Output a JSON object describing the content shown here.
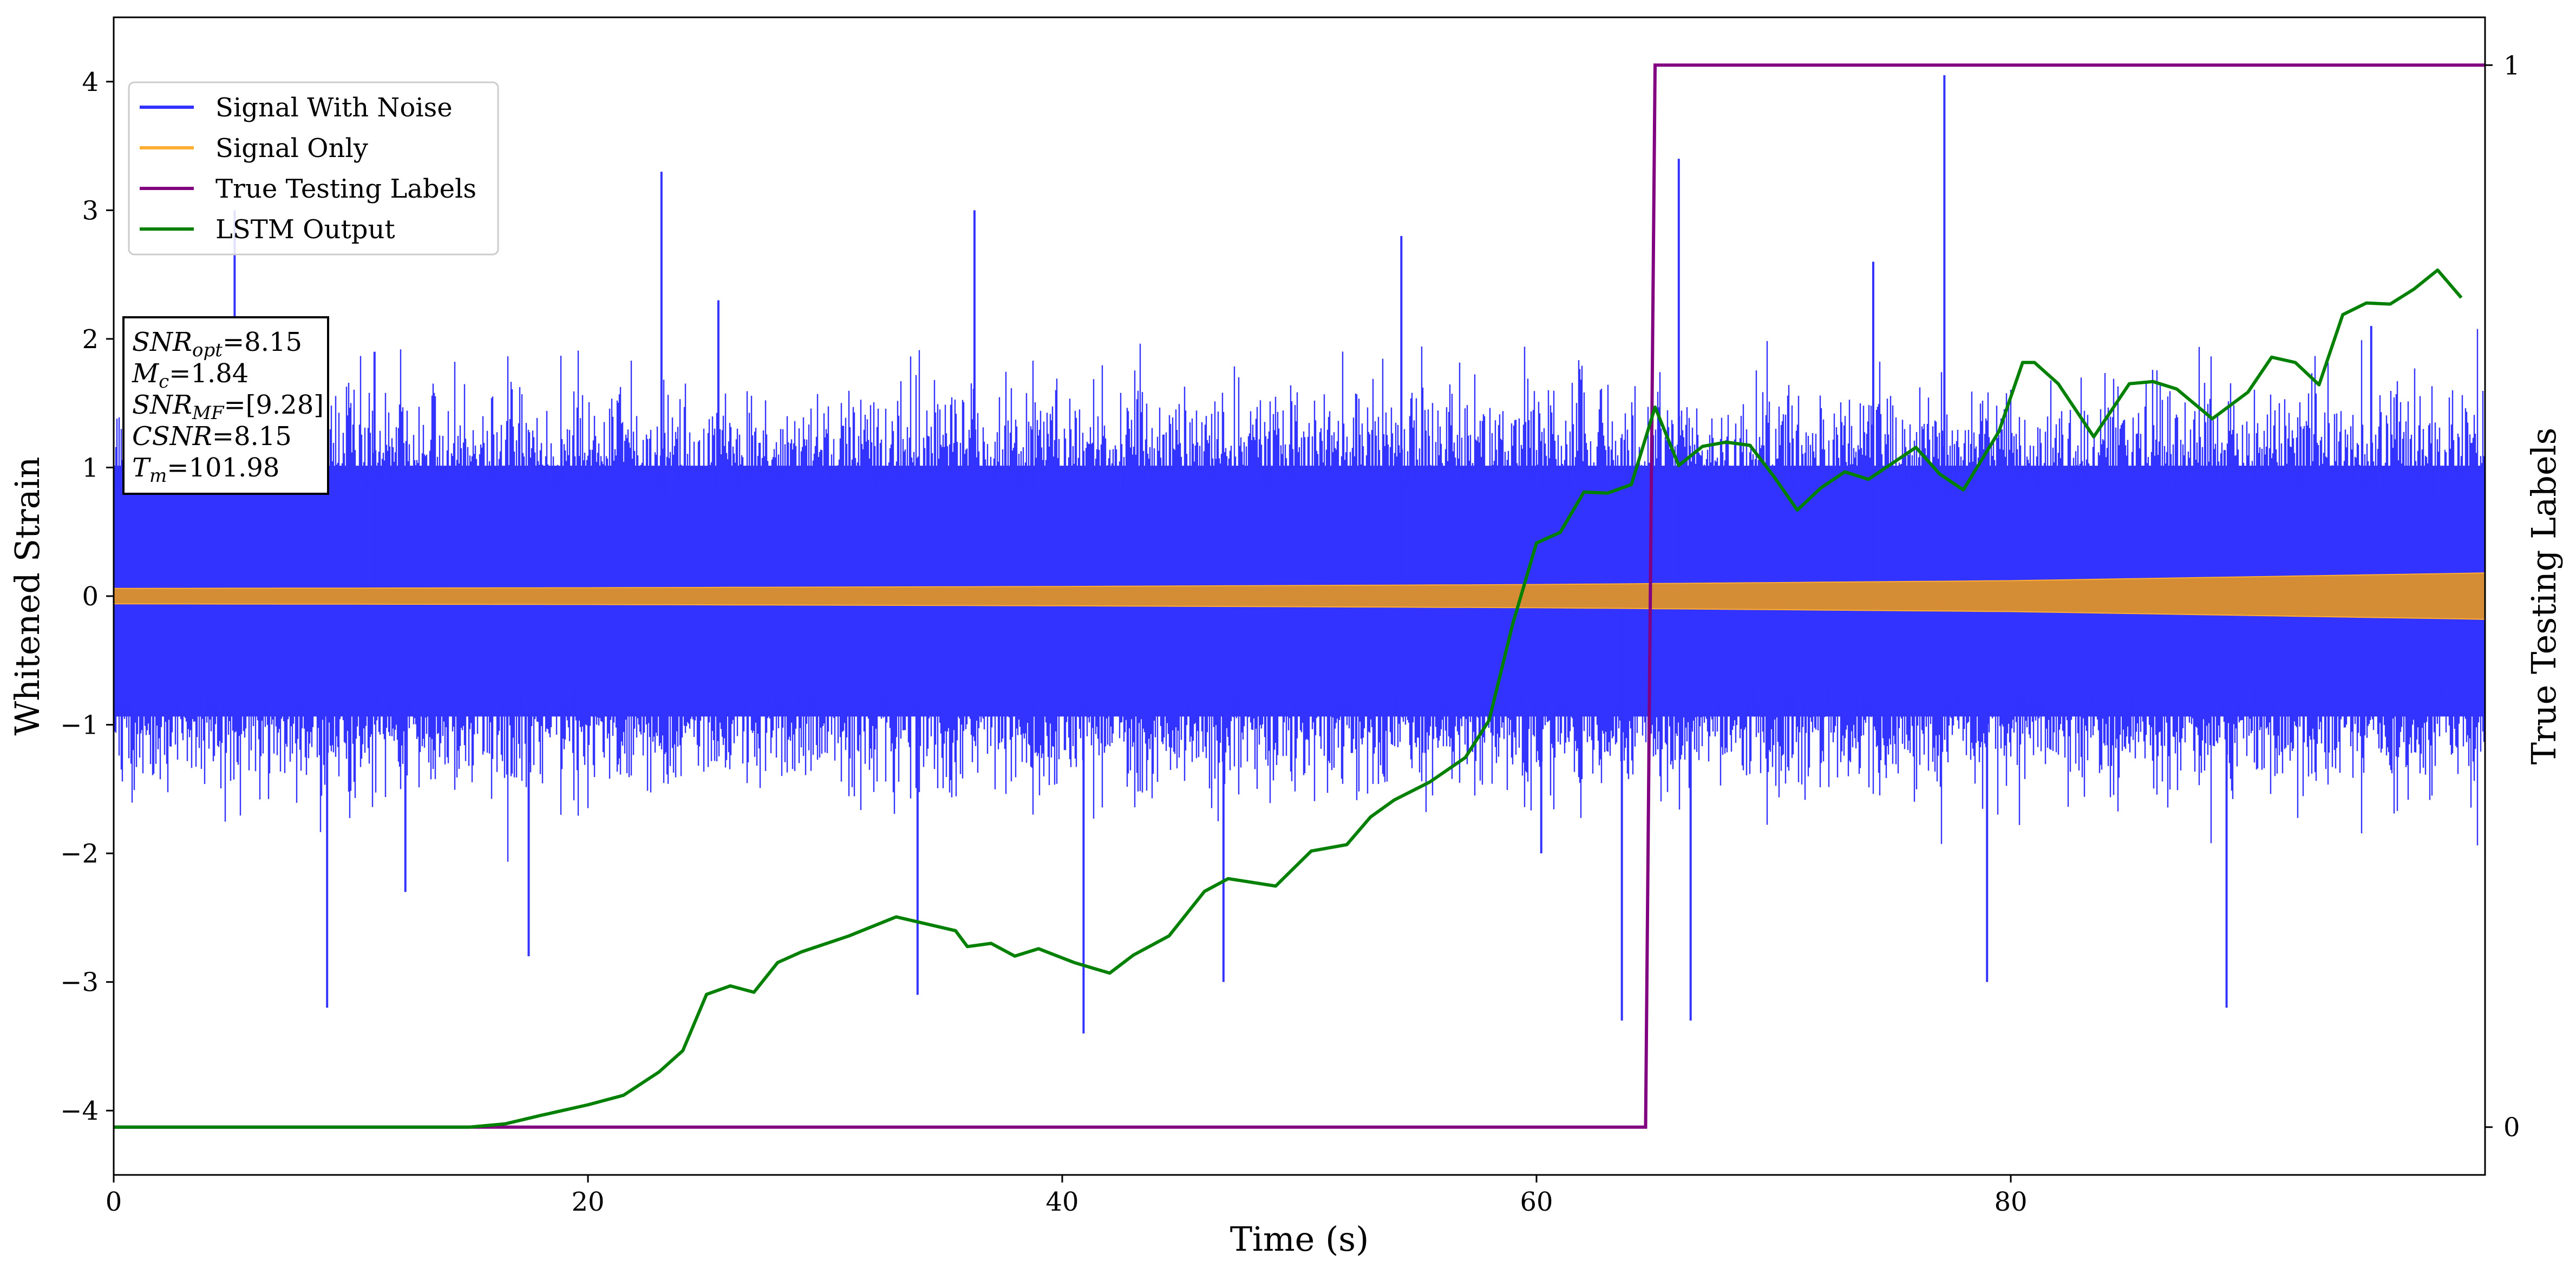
{
  "chart_data": {
    "type": "line",
    "xlabel": "Time (s)",
    "ylabel": "Whitened Strain",
    "y2label": "True Testing Labels",
    "xlim": [
      0,
      100
    ],
    "ylim": [
      -4.5,
      4.5
    ],
    "y2lim": [
      -0.045,
      1.045
    ],
    "xticks": [
      0,
      20,
      40,
      60,
      80
    ],
    "yticks": [
      -4,
      -3,
      -2,
      -1,
      0,
      1,
      2,
      3,
      4
    ],
    "y2ticks": [
      0,
      1
    ],
    "grid": false,
    "legend_position": "upper-left",
    "colors": {
      "signal_with_noise": "#3333ff",
      "signal_only": "#ffad33",
      "true_labels": "#800080",
      "lstm_output": "#008000"
    },
    "series": [
      {
        "name": "Signal With Noise",
        "axis": "left",
        "style": "noise band",
        "typical_range": [
          -1.2,
          1.3
        ],
        "max": 4.05,
        "min": -3.4,
        "spikes": [
          {
            "x": 5.1,
            "y": 3.0
          },
          {
            "x": 9.0,
            "y": -3.2
          },
          {
            "x": 11.0,
            "y": 1.9
          },
          {
            "x": 12.3,
            "y": -2.3
          },
          {
            "x": 17.5,
            "y": -2.8
          },
          {
            "x": 23.1,
            "y": 3.3
          },
          {
            "x": 25.5,
            "y": 2.3
          },
          {
            "x": 33.9,
            "y": -3.1
          },
          {
            "x": 36.3,
            "y": 3.0
          },
          {
            "x": 40.9,
            "y": -3.4
          },
          {
            "x": 46.8,
            "y": -3.0
          },
          {
            "x": 54.3,
            "y": 2.8
          },
          {
            "x": 60.2,
            "y": -2.0
          },
          {
            "x": 63.6,
            "y": -3.3
          },
          {
            "x": 66.5,
            "y": -3.3
          },
          {
            "x": 66.0,
            "y": 3.4
          },
          {
            "x": 74.2,
            "y": 2.6
          },
          {
            "x": 77.2,
            "y": 4.05
          },
          {
            "x": 79.0,
            "y": -3.0
          },
          {
            "x": 89.1,
            "y": -3.2
          },
          {
            "x": 95.2,
            "y": 2.1
          }
        ]
      },
      {
        "name": "Signal Only",
        "axis": "left",
        "style": "chirp envelope",
        "x": [
          0,
          20,
          40,
          60,
          80,
          100
        ],
        "amplitude": [
          0.06,
          0.065,
          0.075,
          0.09,
          0.12,
          0.18
        ]
      },
      {
        "name": "True Testing Labels",
        "axis": "right",
        "x": [
          0,
          64.6,
          65.0,
          100
        ],
        "y": [
          0,
          0,
          1,
          1
        ]
      },
      {
        "name": "LSTM Output",
        "axis": "right",
        "x": [
          0,
          15,
          16.5,
          18,
          20,
          21.5,
          23,
          24,
          25,
          26,
          27,
          28,
          29,
          31,
          33,
          35.5,
          36,
          37,
          38,
          39,
          40.5,
          42,
          43,
          44.5,
          46,
          47,
          49,
          50.5,
          52,
          53,
          54,
          55.5,
          57,
          58,
          59,
          60,
          61,
          62,
          63,
          64,
          65,
          66,
          67,
          68,
          69,
          70,
          71,
          72,
          73,
          74,
          76,
          77,
          78,
          79.5,
          80.5,
          81,
          82,
          83.5,
          85,
          86,
          87,
          88.5,
          90,
          91,
          92,
          93,
          94,
          95,
          96,
          97,
          98,
          99
        ],
        "y": [
          0,
          0,
          0.003,
          0.011,
          0.021,
          0.03,
          0.052,
          0.072,
          0.125,
          0.133,
          0.127,
          0.155,
          0.165,
          0.18,
          0.198,
          0.185,
          0.17,
          0.173,
          0.161,
          0.168,
          0.155,
          0.145,
          0.162,
          0.18,
          0.222,
          0.234,
          0.227,
          0.26,
          0.266,
          0.292,
          0.308,
          0.325,
          0.348,
          0.383,
          0.474,
          0.55,
          0.56,
          0.598,
          0.597,
          0.605,
          0.678,
          0.623,
          0.641,
          0.645,
          0.642,
          0.613,
          0.581,
          0.602,
          0.617,
          0.61,
          0.64,
          0.615,
          0.6,
          0.655,
          0.72,
          0.72,
          0.7,
          0.65,
          0.7,
          0.702,
          0.695,
          0.667,
          0.692,
          0.725,
          0.72,
          0.699,
          0.765,
          0.776,
          0.775,
          0.789,
          0.807,
          0.781
        ]
      }
    ],
    "annotation": [
      {
        "sym": "SNR",
        "sub": "opt",
        "value": "=8.15"
      },
      {
        "sym": "M",
        "sub": "c",
        "value": "=1.84"
      },
      {
        "sym": "SNR",
        "sub": "MF",
        "value": "=[9.28]"
      },
      {
        "sym": "CSNR",
        "sub": "",
        "value": "=8.15"
      },
      {
        "sym": "T",
        "sub": "m",
        "value": "=101.98"
      }
    ]
  }
}
